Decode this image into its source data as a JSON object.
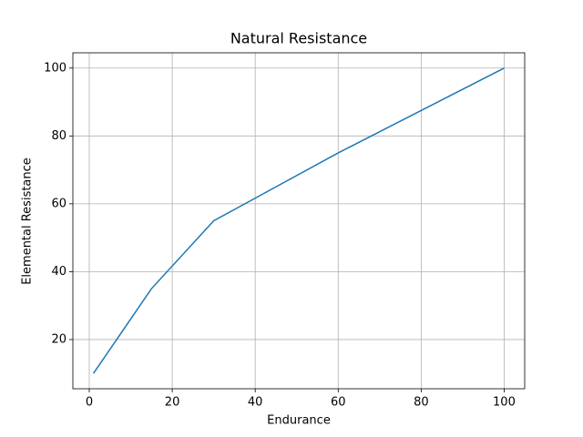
{
  "chart_data": {
    "type": "line",
    "title": "Natural Resistance",
    "xlabel": "Endurance",
    "ylabel": "Elemental Resistance",
    "x": [
      1,
      15,
      30,
      60,
      100
    ],
    "series": [
      {
        "name": "Elemental Resistance",
        "color": "#1f77b4",
        "values": [
          10,
          35,
          55,
          75,
          100
        ]
      }
    ],
    "xlim": [
      -3.95,
      104.95
    ],
    "ylim": [
      5.5,
      104.5
    ],
    "xticks": [
      0,
      20,
      40,
      60,
      80,
      100
    ],
    "yticks": [
      20,
      40,
      60,
      80,
      100
    ],
    "grid": true
  }
}
